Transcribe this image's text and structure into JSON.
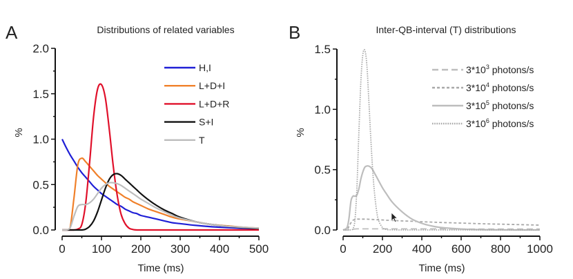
{
  "chart_data": [
    {
      "type": "line",
      "panel_label": "A",
      "title": "Distributions of related variables",
      "xlabel": "Time (ms)",
      "ylabel": "%",
      "xlim": [
        0,
        500
      ],
      "ylim": [
        0,
        2.0
      ],
      "xticks": [
        "0",
        "100",
        "200",
        "300",
        "400",
        "500"
      ],
      "yticks": [
        "0.0",
        "0.5",
        "1.0",
        "1.5",
        "2.0"
      ],
      "legend_position": "top-right",
      "grid": false,
      "x": [
        0,
        10,
        20,
        30,
        40,
        50,
        60,
        70,
        80,
        90,
        100,
        110,
        120,
        130,
        140,
        150,
        160,
        170,
        180,
        190,
        200,
        220,
        240,
        260,
        280,
        300,
        340,
        380,
        420,
        460,
        500
      ],
      "series": [
        {
          "name": "H,I",
          "color": "#1f1fd6",
          "style": "solid",
          "values": [
            1.0,
            0.91,
            0.83,
            0.76,
            0.69,
            0.63,
            0.58,
            0.53,
            0.48,
            0.44,
            0.4,
            0.37,
            0.34,
            0.31,
            0.28,
            0.26,
            0.23,
            0.21,
            0.19,
            0.18,
            0.16,
            0.14,
            0.12,
            0.1,
            0.08,
            0.07,
            0.05,
            0.035,
            0.025,
            0.018,
            0.013
          ]
        },
        {
          "name": "L+D+I",
          "color": "#f0802a",
          "style": "solid",
          "values": [
            0,
            0,
            0.02,
            0.35,
            0.72,
            0.79,
            0.75,
            0.7,
            0.65,
            0.6,
            0.56,
            0.52,
            0.48,
            0.45,
            0.42,
            0.39,
            0.36,
            0.34,
            0.31,
            0.29,
            0.27,
            0.23,
            0.2,
            0.17,
            0.14,
            0.12,
            0.09,
            0.06,
            0.045,
            0.03,
            0.02
          ]
        },
        {
          "name": "L+D+R",
          "color": "#e0102a",
          "style": "solid",
          "values": [
            0,
            0,
            0,
            0,
            0.01,
            0.06,
            0.3,
            0.75,
            1.25,
            1.55,
            1.6,
            1.45,
            1.1,
            0.7,
            0.38,
            0.17,
            0.07,
            0.02,
            0.005,
            0,
            0,
            0,
            0,
            0,
            0,
            0,
            0,
            0,
            0,
            0,
            0
          ]
        },
        {
          "name": "S+I",
          "color": "#111111",
          "style": "solid",
          "values": [
            0,
            0,
            0,
            0,
            0,
            0,
            0.01,
            0.04,
            0.1,
            0.2,
            0.33,
            0.46,
            0.56,
            0.61,
            0.62,
            0.6,
            0.56,
            0.52,
            0.48,
            0.44,
            0.4,
            0.33,
            0.27,
            0.22,
            0.18,
            0.14,
            0.09,
            0.06,
            0.04,
            0.025,
            0.015
          ]
        },
        {
          "name": "T",
          "color": "#bdbdbd",
          "style": "solid",
          "values": [
            0,
            0,
            0.02,
            0.15,
            0.26,
            0.28,
            0.28,
            0.3,
            0.34,
            0.4,
            0.46,
            0.5,
            0.52,
            0.52,
            0.51,
            0.49,
            0.46,
            0.43,
            0.4,
            0.37,
            0.34,
            0.29,
            0.24,
            0.2,
            0.16,
            0.13,
            0.09,
            0.06,
            0.04,
            0.03,
            0.02
          ]
        }
      ]
    },
    {
      "type": "line",
      "panel_label": "B",
      "title": "Inter-QB-interval (T) distributions",
      "xlabel": "Time (ms)",
      "ylabel": "%",
      "xlim": [
        0,
        1000
      ],
      "ylim": [
        0,
        1.5
      ],
      "xticks": [
        "0",
        "200",
        "400",
        "600",
        "800",
        "1000"
      ],
      "yticks": [
        "0.0",
        "0.5",
        "1.0",
        "1.5"
      ],
      "legend_position": "top-right",
      "grid": false,
      "x": [
        0,
        20,
        30,
        40,
        50,
        60,
        70,
        80,
        90,
        100,
        110,
        120,
        130,
        140,
        150,
        160,
        170,
        180,
        200,
        220,
        250,
        300,
        350,
        400,
        450,
        500,
        600,
        700,
        800,
        900,
        1000
      ],
      "series": [
        {
          "name": "3*10^3 photons/s",
          "label_base": "3*10",
          "label_exp": "3",
          "label_unit": " photons/s",
          "color": "#bdbdbd",
          "style": "longdash",
          "values": [
            0,
            0,
            0.002,
            0.004,
            0.006,
            0.008,
            0.009,
            0.009,
            0.009,
            0.009,
            0.009,
            0.009,
            0.009,
            0.009,
            0.009,
            0.009,
            0.009,
            0.009,
            0.009,
            0.009,
            0.009,
            0.009,
            0.009,
            0.009,
            0.009,
            0.009,
            0.008,
            0.008,
            0.008,
            0.008,
            0.008
          ]
        },
        {
          "name": "3*10^4 photons/s",
          "label_base": "3*10",
          "label_exp": "4",
          "label_unit": " photons/s",
          "color": "#a8a8a8",
          "style": "dash",
          "values": [
            0,
            0.005,
            0.03,
            0.06,
            0.08,
            0.088,
            0.09,
            0.09,
            0.09,
            0.09,
            0.09,
            0.09,
            0.089,
            0.088,
            0.087,
            0.086,
            0.085,
            0.084,
            0.083,
            0.081,
            0.079,
            0.075,
            0.072,
            0.068,
            0.065,
            0.062,
            0.057,
            0.052,
            0.048,
            0.044,
            0.04
          ]
        },
        {
          "name": "3*10^5 photons/s",
          "label_base": "3*10",
          "label_exp": "5",
          "label_unit": " photons/s",
          "color": "#bdbdbd",
          "style": "solid",
          "values": [
            0,
            0.02,
            0.1,
            0.24,
            0.28,
            0.28,
            0.29,
            0.34,
            0.42,
            0.48,
            0.52,
            0.53,
            0.53,
            0.52,
            0.5,
            0.47,
            0.44,
            0.41,
            0.35,
            0.3,
            0.23,
            0.15,
            0.09,
            0.055,
            0.033,
            0.02,
            0.008,
            0.003,
            0.001,
            0,
            0
          ]
        },
        {
          "name": "3*10^6 photons/s",
          "label_base": "3*10",
          "label_exp": "6",
          "label_unit": " photons/s",
          "color": "#a8a8a8",
          "style": "dot",
          "values": [
            0,
            0,
            0,
            0,
            0.01,
            0.08,
            0.35,
            0.8,
            1.22,
            1.45,
            1.49,
            1.38,
            1.1,
            0.78,
            0.5,
            0.3,
            0.16,
            0.08,
            0.02,
            0.004,
            0.001,
            0,
            0,
            0,
            0,
            0,
            0,
            0,
            0,
            0,
            0
          ]
        }
      ]
    }
  ],
  "annotations": {
    "cursor_icon": "mouse-pointer"
  }
}
